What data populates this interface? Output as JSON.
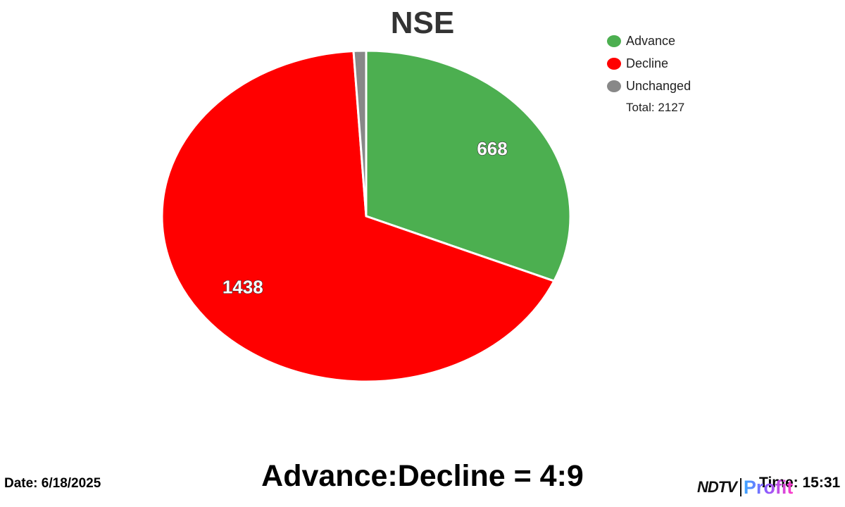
{
  "title": "NSE",
  "legend": [
    {
      "label": "Advance",
      "color": "#4caf50"
    },
    {
      "label": "Decline",
      "color": "#ff0000"
    },
    {
      "label": "Unchanged",
      "color": "#888888"
    }
  ],
  "total_label": "Total: 2127",
  "ratio_text": "Advance:Decline = 4:9",
  "date_text": "Date: 6/18/2025",
  "time_text": "Time: 15:31",
  "brand": {
    "ndtv": "NDTV",
    "profit": "Profit"
  },
  "chart_data": {
    "type": "pie",
    "title": "NSE",
    "categories": [
      "Advance",
      "Decline",
      "Unchanged"
    ],
    "values": [
      668,
      1438,
      21
    ],
    "data_labels": [
      "668",
      "1438",
      ""
    ],
    "total": 2127,
    "colors": [
      "#4caf50",
      "#ff0000",
      "#888888"
    ],
    "legend_position": "top-right"
  }
}
